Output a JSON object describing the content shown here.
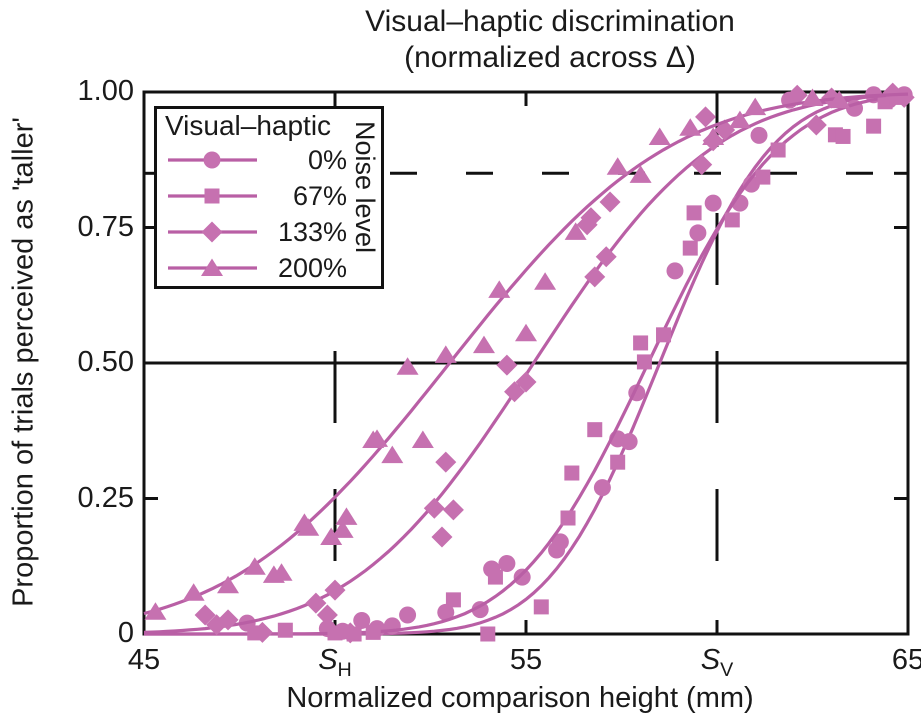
{
  "title": {
    "line1": "Visual–haptic discrimination",
    "line2": "(normalized across Δ)"
  },
  "axes": {
    "x_label": "Normalized comparison height (mm)",
    "y_label": "Proportion of trials perceived as 'taller'"
  },
  "legend": {
    "title": "Visual–haptic",
    "side_label": "Noise level",
    "entries": [
      "0%",
      "67%",
      "133%",
      "200%"
    ]
  },
  "colors": {
    "marker": "#c671b0",
    "curve": "#b95fa5",
    "axis": "#111111"
  },
  "chart_data": {
    "type": "scatter",
    "subtype": "psychometric-functions",
    "title": "Visual–haptic discrimination (normalized across Δ)",
    "xlabel": "Normalized comparison height (mm)",
    "ylabel": "Proportion of trials perceived as 'taller'",
    "x_range": [
      45,
      65
    ],
    "y_range": [
      0,
      1
    ],
    "grid": false,
    "legend_position": "top-left",
    "x_ticks": [
      {
        "label": "45",
        "value": 45
      },
      {
        "label": "S_H",
        "value": 50
      },
      {
        "label": "55",
        "value": 55
      },
      {
        "label": "S_V",
        "value": 60
      },
      {
        "label": "65",
        "value": 65
      }
    ],
    "y_ticks": [
      {
        "label": "1.00",
        "value": 1
      },
      {
        "label": "0.75",
        "value": 0.75
      },
      {
        "label": "0.50",
        "value": 0.5
      },
      {
        "label": "0.25",
        "value": 0.25
      },
      {
        "label": "0",
        "value": 0
      }
    ],
    "inner_ticks": {
      "x": [
        50,
        55,
        60
      ],
      "y": [
        0.25,
        0.75,
        0.85
      ]
    },
    "reference_lines": [
      {
        "type": "horizontal",
        "value": 0.5,
        "style": "solid"
      },
      {
        "type": "horizontal",
        "value": 0.85,
        "style": "dashed"
      },
      {
        "type": "vertical",
        "value": 50,
        "style": "long-dashed",
        "label": "S_H"
      },
      {
        "type": "vertical",
        "value": 60,
        "style": "long-dashed",
        "label": "S_V"
      }
    ],
    "series": [
      {
        "name": "0%",
        "marker": "circle",
        "fit": {
          "pse": 58.5,
          "sigma": 2.3
        },
        "points": [
          [
            47.7,
            0.02
          ],
          [
            49.8,
            0.01
          ],
          [
            50.2,
            0.005
          ],
          [
            50.7,
            0.025
          ],
          [
            51.1,
            0.01
          ],
          [
            51.5,
            0.015
          ],
          [
            51.9,
            0.035
          ],
          [
            52.9,
            0.04
          ],
          [
            53.8,
            0.045
          ],
          [
            54.1,
            0.12
          ],
          [
            54.5,
            0.13
          ],
          [
            54.9,
            0.105
          ],
          [
            55.8,
            0.155
          ],
          [
            55.9,
            0.17
          ],
          [
            57.0,
            0.27
          ],
          [
            57.4,
            0.36
          ],
          [
            57.7,
            0.355
          ],
          [
            57.9,
            0.445
          ],
          [
            58.9,
            0.67
          ],
          [
            59.5,
            0.74
          ],
          [
            59.9,
            0.795
          ],
          [
            60.6,
            0.795
          ],
          [
            60.9,
            0.83
          ],
          [
            61.1,
            0.92
          ],
          [
            61.9,
            0.985
          ],
          [
            63.6,
            0.97
          ],
          [
            64.1,
            0.995
          ],
          [
            64.5,
            0.985
          ],
          [
            64.9,
            0.995
          ]
        ]
      },
      {
        "name": "67%",
        "marker": "square",
        "fit": {
          "pse": 58.2,
          "sigma": 2.7
        },
        "points": [
          [
            47.9,
            0.002
          ],
          [
            48.7,
            0.007
          ],
          [
            50.0,
            0.002
          ],
          [
            50.5,
            0.0
          ],
          [
            51.0,
            0.003
          ],
          [
            53.1,
            0.063
          ],
          [
            54.0,
            0.0
          ],
          [
            54.2,
            0.105
          ],
          [
            55.4,
            0.05
          ],
          [
            56.1,
            0.214
          ],
          [
            56.2,
            0.297
          ],
          [
            56.8,
            0.377
          ],
          [
            57.4,
            0.317
          ],
          [
            58.0,
            0.537
          ],
          [
            58.1,
            0.502
          ],
          [
            58.6,
            0.552
          ],
          [
            59.3,
            0.712
          ],
          [
            59.4,
            0.777
          ],
          [
            60.4,
            0.764
          ],
          [
            61.2,
            0.843
          ],
          [
            61.6,
            0.893
          ],
          [
            63.1,
            0.921
          ],
          [
            63.3,
            0.918
          ],
          [
            64.1,
            0.937
          ],
          [
            64.4,
            0.982
          ],
          [
            64.7,
            0.99
          ]
        ]
      },
      {
        "name": "133%",
        "marker": "diamond",
        "fit": {
          "pse": 55.2,
          "sigma": 3.7
        },
        "points": [
          [
            46.6,
            0.035
          ],
          [
            46.9,
            0.017
          ],
          [
            47.2,
            0.026
          ],
          [
            48.1,
            0.003
          ],
          [
            49.5,
            0.057
          ],
          [
            49.8,
            0.035
          ],
          [
            50.0,
            0.081
          ],
          [
            50.4,
            0.002
          ],
          [
            52.6,
            0.232
          ],
          [
            52.8,
            0.179
          ],
          [
            52.9,
            0.317
          ],
          [
            53.1,
            0.229
          ],
          [
            54.5,
            0.496
          ],
          [
            54.7,
            0.447
          ],
          [
            55.0,
            0.465
          ],
          [
            56.6,
            0.755
          ],
          [
            56.7,
            0.768
          ],
          [
            56.8,
            0.659
          ],
          [
            57.1,
            0.696
          ],
          [
            57.2,
            0.797
          ],
          [
            59.6,
            0.866
          ],
          [
            59.7,
            0.954
          ],
          [
            59.9,
            0.91
          ],
          [
            60.2,
            0.93
          ],
          [
            62.1,
            0.994
          ],
          [
            62.6,
            0.939
          ],
          [
            63.0,
            0.989
          ],
          [
            64.6,
            0.998
          ],
          [
            64.9,
            0.99
          ]
        ]
      },
      {
        "name": "200%",
        "marker": "triangle",
        "fit": {
          "pse": 53.0,
          "sigma": 4.5
        },
        "points": [
          [
            45.3,
            0.041
          ],
          [
            46.3,
            0.076
          ],
          [
            47.2,
            0.09
          ],
          [
            47.9,
            0.124
          ],
          [
            48.4,
            0.109
          ],
          [
            48.6,
            0.113
          ],
          [
            49.2,
            0.205
          ],
          [
            49.3,
            0.196
          ],
          [
            49.9,
            0.179
          ],
          [
            50.2,
            0.192
          ],
          [
            50.3,
            0.216
          ],
          [
            51.0,
            0.358
          ],
          [
            51.1,
            0.36
          ],
          [
            51.5,
            0.33
          ],
          [
            51.9,
            0.493
          ],
          [
            52.3,
            0.358
          ],
          [
            52.9,
            0.515
          ],
          [
            53.9,
            0.533
          ],
          [
            54.3,
            0.635
          ],
          [
            55.0,
            0.555
          ],
          [
            55.5,
            0.65
          ],
          [
            56.3,
            0.742
          ],
          [
            57.4,
            0.862
          ],
          [
            58.0,
            0.847
          ],
          [
            58.5,
            0.917
          ],
          [
            59.3,
            0.934
          ],
          [
            59.9,
            0.917
          ],
          [
            60.6,
            0.948
          ],
          [
            61.0,
            0.972
          ],
          [
            62.5,
            0.989
          ],
          [
            63.2,
            0.985
          ]
        ]
      }
    ]
  }
}
